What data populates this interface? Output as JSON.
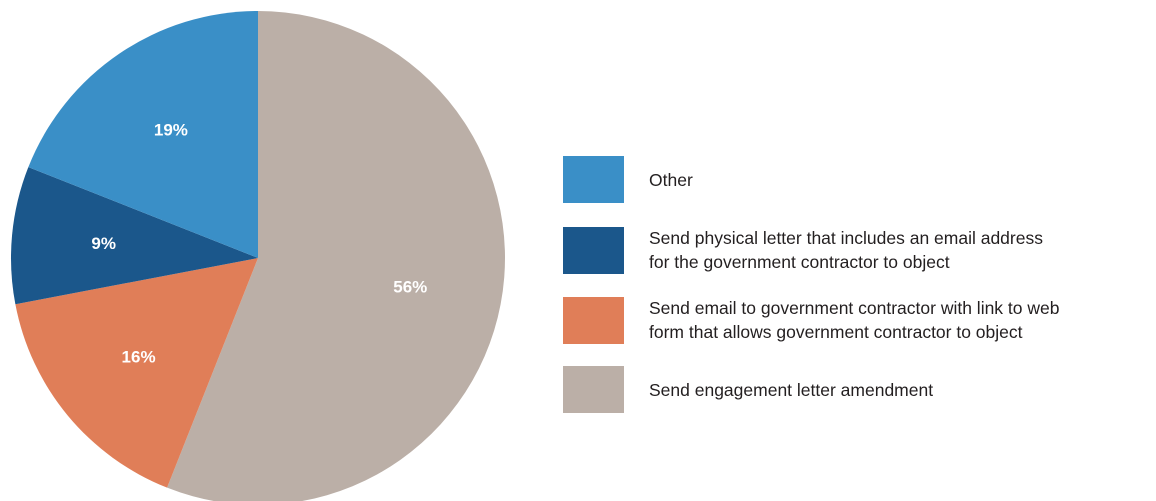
{
  "chart_data": {
    "type": "pie",
    "slices": [
      {
        "label": "Send engagement letter amendment",
        "value": 56,
        "value_label": "56%",
        "color": "#bbafa7"
      },
      {
        "label": "Send email to government contractor with link to web\nform that allows government contractor to object",
        "value": 16,
        "value_label": "16%",
        "color": "#e07e58"
      },
      {
        "label": "Send physical letter that includes an email address\nfor the government contractor to object",
        "value": 9,
        "value_label": "9%",
        "color": "#1b578b"
      },
      {
        "label": "Other",
        "value": 19,
        "value_label": "19%",
        "color": "#3a8fc7"
      }
    ],
    "legend_order": [
      3,
      2,
      1,
      0
    ],
    "start_angle_deg": 0,
    "direction": "clockwise",
    "legend": "right"
  }
}
